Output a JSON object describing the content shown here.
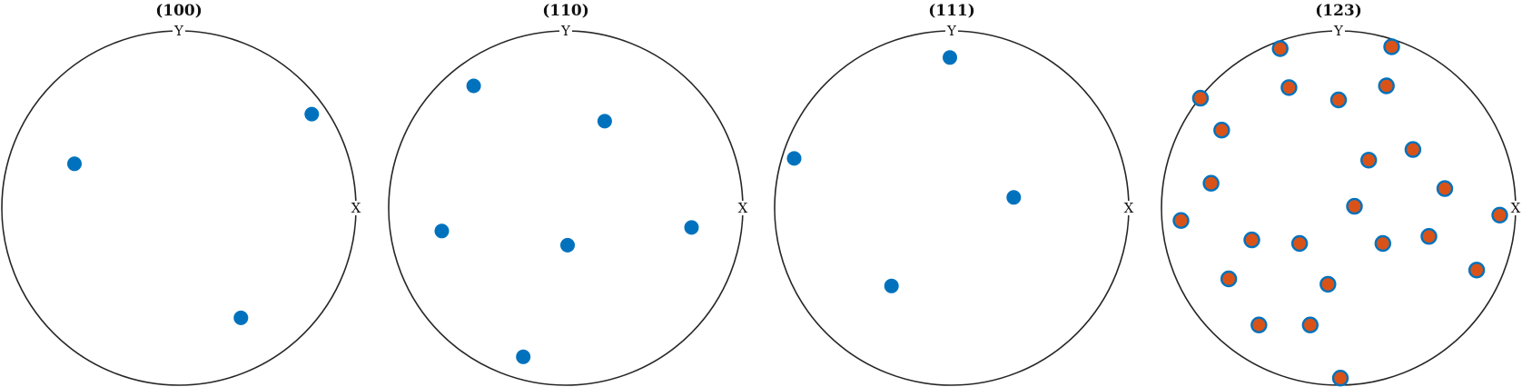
{
  "chart_data": [
    {
      "type": "scatter",
      "title": "(100)",
      "axis_labels": {
        "x": "X",
        "y": "Y"
      },
      "xlim": [
        -1,
        1
      ],
      "ylim": [
        -1,
        1
      ],
      "grid": false,
      "marker": {
        "face": "#0072BD",
        "edge": "#0072BD"
      },
      "points": [
        [
          0.75,
          0.53
        ],
        [
          -0.59,
          0.25
        ],
        [
          0.35,
          -0.62
        ]
      ]
    },
    {
      "type": "scatter",
      "title": "(110)",
      "axis_labels": {
        "x": "X",
        "y": "Y"
      },
      "xlim": [
        -1,
        1
      ],
      "ylim": [
        -1,
        1
      ],
      "grid": false,
      "marker": {
        "face": "#0072BD",
        "edge": "#0072BD"
      },
      "points": [
        [
          -0.52,
          0.69
        ],
        [
          0.22,
          0.49
        ],
        [
          -0.7,
          -0.13
        ],
        [
          0.01,
          -0.21
        ],
        [
          0.71,
          -0.11
        ],
        [
          -0.24,
          -0.84
        ]
      ]
    },
    {
      "type": "scatter",
      "title": "(111)",
      "axis_labels": {
        "x": "X",
        "y": "Y"
      },
      "xlim": [
        -1,
        1
      ],
      "ylim": [
        -1,
        1
      ],
      "grid": false,
      "marker": {
        "face": "#0072BD",
        "edge": "#0072BD"
      },
      "points": [
        [
          -0.01,
          0.85
        ],
        [
          -0.89,
          0.28
        ],
        [
          0.35,
          0.06
        ],
        [
          -0.34,
          -0.44
        ]
      ]
    },
    {
      "type": "scatter",
      "title": "(123)",
      "axis_labels": {
        "x": "X",
        "y": "Y"
      },
      "xlim": [
        -1,
        1
      ],
      "ylim": [
        -1,
        1
      ],
      "grid": false,
      "marker": {
        "face": "#D95319",
        "edge": "#0072BD"
      },
      "points": [
        [
          -0.33,
          0.9
        ],
        [
          0.3,
          0.91
        ],
        [
          -0.78,
          0.62
        ],
        [
          -0.28,
          0.68
        ],
        [
          0.0,
          0.61
        ],
        [
          0.27,
          0.69
        ],
        [
          -0.66,
          0.44
        ],
        [
          0.17,
          0.27
        ],
        [
          0.42,
          0.33
        ],
        [
          -0.72,
          0.14
        ],
        [
          0.6,
          0.11
        ],
        [
          0.09,
          0.01
        ],
        [
          -0.89,
          -0.07
        ],
        [
          0.91,
          -0.04
        ],
        [
          -0.49,
          -0.18
        ],
        [
          -0.22,
          -0.2
        ],
        [
          0.25,
          -0.2
        ],
        [
          0.51,
          -0.16
        ],
        [
          -0.62,
          -0.4
        ],
        [
          -0.06,
          -0.43
        ],
        [
          0.78,
          -0.35
        ],
        [
          -0.45,
          -0.66
        ],
        [
          -0.16,
          -0.66
        ],
        [
          0.01,
          -0.96
        ]
      ]
    }
  ]
}
